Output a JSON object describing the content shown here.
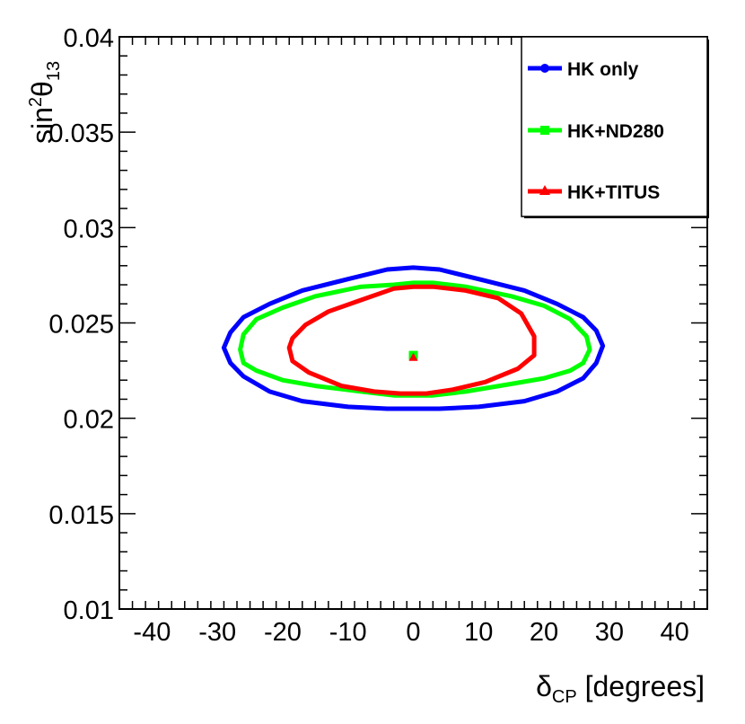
{
  "chart_data": {
    "type": "line",
    "xlabel": {
      "main": "δ",
      "sub": "CP",
      "rest": " [degrees]"
    },
    "ylabel": {
      "main": "sin",
      "sup": "2",
      "theta": "θ",
      "sub": "13"
    },
    "xlim": [
      -45,
      45
    ],
    "ylim": [
      0.01,
      0.04
    ],
    "xticks": [
      -40,
      -30,
      -20,
      -10,
      0,
      10,
      20,
      30,
      40
    ],
    "xtick_labels": [
      "-40",
      "-30",
      "-20",
      "-10",
      "0",
      "10",
      "20",
      "30",
      "40"
    ],
    "yticks": [
      0.01,
      0.015,
      0.02,
      0.025,
      0.03,
      0.035,
      0.04
    ],
    "ytick_labels": [
      "0.01",
      "0.015",
      "0.02",
      "0.025",
      "0.03",
      "0.035",
      "0.04"
    ],
    "grid": false,
    "legend_position": "top-right",
    "series": [
      {
        "name": "HK only",
        "color": "#0000ff",
        "marker": "circle",
        "contour": [
          [
            -29,
            0.0237
          ],
          [
            -28,
            0.0245
          ],
          [
            -26,
            0.0253
          ],
          [
            -22,
            0.026
          ],
          [
            -17,
            0.0267
          ],
          [
            -10,
            0.0273
          ],
          [
            -4,
            0.0278
          ],
          [
            0,
            0.0279
          ],
          [
            4,
            0.0278
          ],
          [
            10,
            0.0273
          ],
          [
            17,
            0.0267
          ],
          [
            22,
            0.026
          ],
          [
            26,
            0.0253
          ],
          [
            28,
            0.0246
          ],
          [
            29,
            0.0238
          ],
          [
            28,
            0.0229
          ],
          [
            26,
            0.0221
          ],
          [
            22,
            0.0214
          ],
          [
            17,
            0.0209
          ],
          [
            10,
            0.0206
          ],
          [
            4,
            0.0205
          ],
          [
            0,
            0.0205
          ],
          [
            -4,
            0.0205
          ],
          [
            -10,
            0.0206
          ],
          [
            -17,
            0.0209
          ],
          [
            -22,
            0.0214
          ],
          [
            -26,
            0.0222
          ],
          [
            -28,
            0.0229
          ]
        ],
        "best_fit": [
          0,
          0.0233
        ]
      },
      {
        "name": "HK+ND280",
        "color": "#00ff00",
        "marker": "square",
        "contour": [
          [
            -26.5,
            0.0236
          ],
          [
            -26,
            0.0244
          ],
          [
            -24,
            0.0252
          ],
          [
            -20,
            0.0258
          ],
          [
            -15,
            0.0264
          ],
          [
            -8,
            0.0269
          ],
          [
            -3,
            0.027
          ],
          [
            0,
            0.0271
          ],
          [
            3,
            0.0271
          ],
          [
            8,
            0.0269
          ],
          [
            15,
            0.0264
          ],
          [
            20,
            0.0259
          ],
          [
            24,
            0.0252
          ],
          [
            26.5,
            0.0243
          ],
          [
            27,
            0.0236
          ],
          [
            26,
            0.0229
          ],
          [
            24,
            0.0225
          ],
          [
            20,
            0.0221
          ],
          [
            15,
            0.0218
          ],
          [
            8,
            0.0214
          ],
          [
            3,
            0.0212
          ],
          [
            0,
            0.0212
          ],
          [
            -3,
            0.0212
          ],
          [
            -8,
            0.0214
          ],
          [
            -15,
            0.0217
          ],
          [
            -20,
            0.022
          ],
          [
            -24,
            0.0225
          ],
          [
            -26,
            0.0229
          ]
        ],
        "best_fit": [
          0,
          0.0233
        ]
      },
      {
        "name": "HK+TITUS",
        "color": "#ff0000",
        "marker": "triangle",
        "contour": [
          [
            -19,
            0.0237
          ],
          [
            -18.5,
            0.0242
          ],
          [
            -16.5,
            0.0249
          ],
          [
            -13,
            0.0256
          ],
          [
            -8,
            0.0262
          ],
          [
            -3,
            0.0268
          ],
          [
            0,
            0.0269
          ],
          [
            3,
            0.0269
          ],
          [
            8,
            0.0267
          ],
          [
            13,
            0.0263
          ],
          [
            16.5,
            0.0255
          ],
          [
            18.5,
            0.0243
          ],
          [
            18.5,
            0.0233
          ],
          [
            16,
            0.0226
          ],
          [
            11,
            0.0219
          ],
          [
            6,
            0.0215
          ],
          [
            2,
            0.0213
          ],
          [
            0,
            0.0213
          ],
          [
            -2,
            0.0213
          ],
          [
            -6,
            0.0214
          ],
          [
            -11,
            0.0217
          ],
          [
            -16,
            0.0224
          ],
          [
            -18.5,
            0.023
          ]
        ],
        "best_fit": [
          0,
          0.0232
        ]
      }
    ]
  }
}
